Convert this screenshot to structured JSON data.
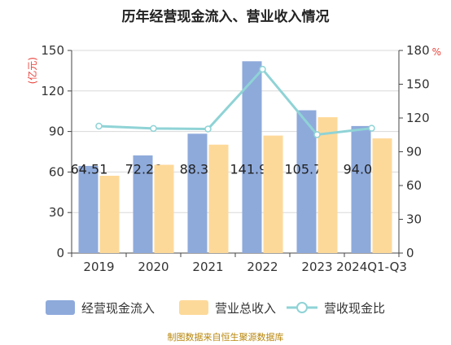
{
  "title": "历年经营现金流入、营业收入情况",
  "source": "制图数据来自恒生聚源数据库",
  "chart_data": {
    "type": "bar",
    "categories": [
      "2019",
      "2020",
      "2021",
      "2022",
      "2023",
      "2024Q1-Q3"
    ],
    "series": [
      {
        "name": "经营现金流入",
        "kind": "bar",
        "axis": "left",
        "color": "#8eaadb",
        "values": [
          64.51,
          72.28,
          88.36,
          141.99,
          105.71,
          94.05
        ]
      },
      {
        "name": "营业总收入",
        "kind": "bar",
        "axis": "left",
        "color": "#fdd999",
        "values": [
          57.2,
          65.3,
          80.2,
          86.9,
          100.5,
          84.8
        ]
      },
      {
        "name": "营收现金比",
        "kind": "line",
        "axis": "right",
        "color": "#8fd3d6",
        "values": [
          112.8,
          110.7,
          110.2,
          163.3,
          105.2,
          110.9
        ]
      }
    ],
    "data_labels": [
      "64.51",
      "72.28",
      "88.36",
      "141.99",
      "105.71",
      "94.05"
    ],
    "y_left": {
      "unit": "(亿元)",
      "min": 0,
      "max": 150,
      "ticks": [
        "0",
        "30",
        "60",
        "90",
        "120",
        "150"
      ]
    },
    "y_right": {
      "unit": "%",
      "min": 0,
      "max": 180,
      "ticks": [
        "0",
        "30",
        "60",
        "90",
        "120",
        "150",
        "180"
      ]
    },
    "grid": true,
    "legend_position": "bottom"
  }
}
